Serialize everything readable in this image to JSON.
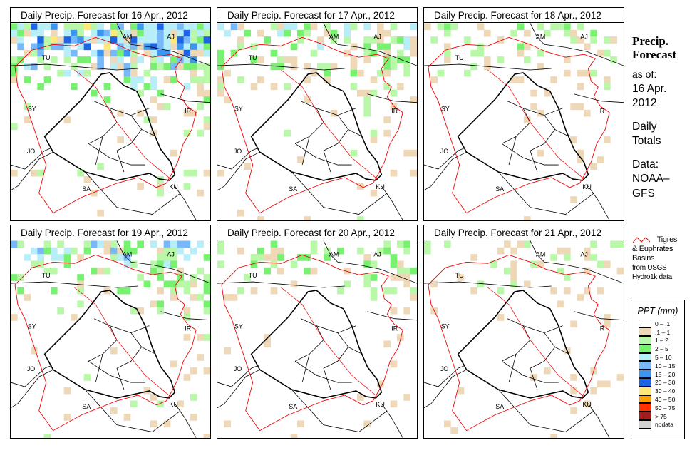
{
  "panels": [
    {
      "title": "Daily Precip. Forecast for  16 Apr., 2012",
      "density": 0.85
    },
    {
      "title": "Daily Precip. Forecast for  17 Apr., 2012",
      "density": 0.45
    },
    {
      "title": "Daily Precip. Forecast for  18 Apr., 2012",
      "density": 0.25
    },
    {
      "title": "Daily Precip. Forecast for  19 Apr., 2012",
      "density": 0.5
    },
    {
      "title": "Daily Precip. Forecast for  20 Apr., 2012",
      "density": 0.3
    },
    {
      "title": "Daily Precip. Forecast for  21 Apr., 2012",
      "density": 0.2
    }
  ],
  "map_labels": {
    "am": "AM",
    "aj": "AJ",
    "tu": "TU",
    "sy": "SY",
    "ir": "IR",
    "jo": "JO",
    "sa": "SA",
    "ku": "KU"
  },
  "side": {
    "title1": "Precip.",
    "title2": "Forecast",
    "asof": "as of:",
    "date1": "16 Apr.",
    "date2": "2012",
    "daily": "Daily",
    "totals": "Totals",
    "data": "Data:",
    "src1": "NOAA–",
    "src2": "GFS"
  },
  "basin_note": {
    "line1": "Tigres",
    "line2": "& Euphrates",
    "line3": "Basins",
    "line4": "from USGS",
    "line5": "Hydro1k data"
  },
  "legend": {
    "title": "PPT (mm)",
    "items": [
      {
        "label": "0 – .1",
        "color": "#ffffff"
      },
      {
        "label": ".1 – 1",
        "color": "#eed8b8"
      },
      {
        "label": "1 – 2",
        "color": "#b8f8a8"
      },
      {
        "label": "2 – 5",
        "color": "#78f070"
      },
      {
        "label": "5 – 10",
        "color": "#b8eef8"
      },
      {
        "label": "10 – 15",
        "color": "#78b8f8"
      },
      {
        "label": "15 – 20",
        "color": "#3c96f0"
      },
      {
        "label": "20 – 30",
        "color": "#1e64e6"
      },
      {
        "label": "30 – 40",
        "color": "#ffe878"
      },
      {
        "label": "40 – 50",
        "color": "#ffa000"
      },
      {
        "label": "50 – 75",
        "color": "#ff3200"
      },
      {
        "label": "> 75",
        "color": "#a01e1e"
      },
      {
        "label": "nodata",
        "color": "#d2d2d2"
      }
    ]
  }
}
